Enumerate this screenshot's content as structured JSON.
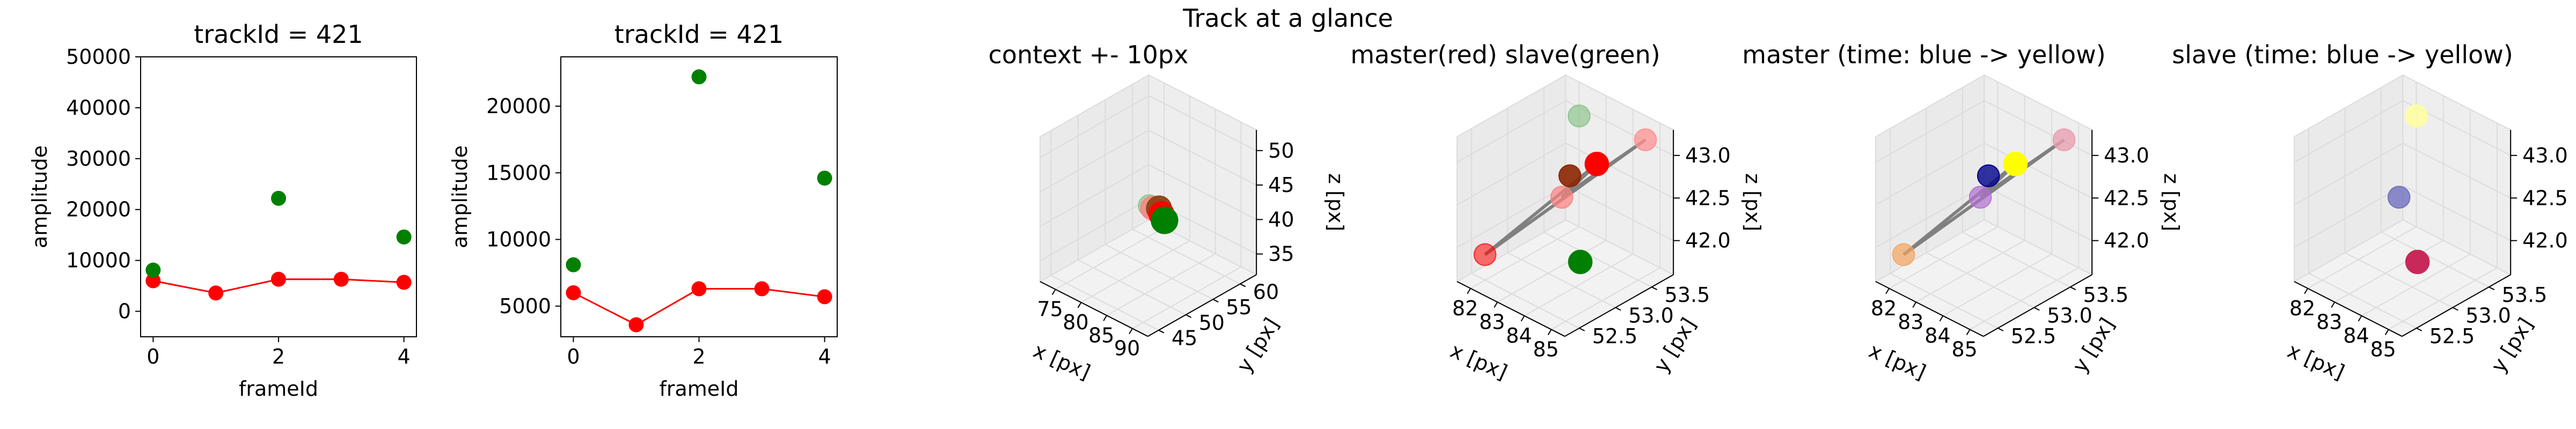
{
  "figure": {
    "suptitle": "Track at a glance"
  },
  "colors": {
    "master": "#ff0000",
    "slave": "#008000",
    "line": "#808080",
    "pane": "#f2f2f2",
    "grid": "#dcdcdc"
  },
  "chart_data": [
    {
      "type": "scatter",
      "title": "trackId = 421",
      "xlabel": "frameId",
      "ylabel": "amplitude",
      "xlim": [
        -0.2,
        4.2
      ],
      "ylim": [
        -5000,
        50000
      ],
      "xticks": [
        0,
        2,
        4
      ],
      "yticks": [
        0,
        10000,
        20000,
        30000,
        40000,
        50000
      ],
      "series": [
        {
          "color": "#ff0000",
          "line": true,
          "x": [
            0,
            1,
            2,
            3,
            4
          ],
          "y": [
            6000,
            3600,
            6300,
            6300,
            5700
          ]
        },
        {
          "color": "#008000",
          "line": false,
          "x": [
            0,
            2,
            4
          ],
          "y": [
            8100,
            22200,
            14600
          ]
        }
      ]
    },
    {
      "type": "scatter",
      "title": "trackId = 421",
      "xlabel": "frameId",
      "ylabel": "amplitude",
      "xlim": [
        -0.2,
        4.2
      ],
      "ylim": [
        2700,
        23700
      ],
      "xticks": [
        0,
        2,
        4
      ],
      "yticks": [
        5000,
        10000,
        15000,
        20000
      ],
      "series": [
        {
          "color": "#ff0000",
          "line": true,
          "x": [
            0,
            1,
            2,
            3,
            4
          ],
          "y": [
            6000,
            3600,
            6300,
            6300,
            5700
          ]
        },
        {
          "color": "#008000",
          "line": false,
          "x": [
            0,
            2,
            4
          ],
          "y": [
            8100,
            22200,
            14600
          ]
        }
      ]
    },
    {
      "type": "scatter3d",
      "title": "context +- 10px",
      "xlabel": "x [px]",
      "ylabel": "y [px]",
      "zlabel": "z [px]",
      "xlim": [
        72,
        93
      ],
      "ylim": [
        43,
        63
      ],
      "zlim": [
        32,
        53
      ],
      "xticks": [
        75,
        80,
        85,
        90
      ],
      "yticks": [
        45,
        50,
        55,
        60
      ],
      "zticks": [
        35,
        40,
        45,
        50
      ],
      "points": [
        {
          "x": 82.5,
          "y": 53.2,
          "z": 42.4,
          "color": "#7fbf7f",
          "opacity": 0.6,
          "size": 14
        },
        {
          "x": 83.0,
          "y": 53.3,
          "z": 42.2,
          "color": "#ff8080",
          "opacity": 0.8,
          "size": 15
        },
        {
          "x": 84.6,
          "y": 53.0,
          "z": 42.9,
          "color": "#8b4513",
          "opacity": 0.95,
          "size": 16
        },
        {
          "x": 85.5,
          "y": 52.6,
          "z": 42.6,
          "color": "#ff0000",
          "opacity": 0.95,
          "size": 16
        },
        {
          "x": 86.2,
          "y": 52.5,
          "z": 42.0,
          "color": "#008000",
          "opacity": 1,
          "size": 17
        }
      ],
      "lines": []
    },
    {
      "type": "scatter3d",
      "title": "master(red) slave(green)",
      "xlabel": "x [px]",
      "ylabel": "y [px]",
      "zlabel": "z [px]",
      "xlim": [
        81.5,
        85.5
      ],
      "ylim": [
        52.3,
        53.8
      ],
      "zlim": [
        41.6,
        43.3
      ],
      "xticks": [
        82,
        83,
        84,
        85
      ],
      "yticks": [
        52.5,
        53.0,
        53.5
      ],
      "zticks": [
        42.0,
        42.5,
        43.0
      ],
      "points": [
        {
          "x": 82.0,
          "y": 52.5,
          "z": 41.9,
          "color": "#ff0000",
          "opacity": 0.55,
          "size": 14
        },
        {
          "x": 82.0,
          "y": 53.8,
          "z": 42.9,
          "color": "#7fbf7f",
          "opacity": 0.6,
          "size": 14
        },
        {
          "x": 82.7,
          "y": 53.3,
          "z": 42.3,
          "color": "#ff8080",
          "opacity": 0.7,
          "size": 14
        },
        {
          "x": 83.0,
          "y": 53.3,
          "z": 42.6,
          "color": "#8b2500",
          "opacity": 0.9,
          "size": 14
        },
        {
          "x": 84.0,
          "y": 53.3,
          "z": 42.9,
          "color": "#ff0000",
          "opacity": 1,
          "size": 15
        },
        {
          "x": 85.0,
          "y": 53.6,
          "z": 43.2,
          "color": "#ff9090",
          "opacity": 0.75,
          "size": 14
        },
        {
          "x": 85.0,
          "y": 52.7,
          "z": 42.2,
          "color": "#008000",
          "opacity": 1,
          "size": 15
        }
      ],
      "lines": [
        {
          "x": [
            82.0,
            84.0
          ],
          "y": [
            52.5,
            53.3
          ],
          "z": [
            41.9,
            42.9
          ]
        },
        {
          "x": [
            82.0,
            85.0
          ],
          "y": [
            52.5,
            53.6
          ],
          "z": [
            41.9,
            43.2
          ]
        },
        {
          "x": [
            82.7,
            84.0
          ],
          "y": [
            53.3,
            53.3
          ],
          "z": [
            42.3,
            42.9
          ]
        },
        {
          "x": [
            82.7,
            85.0
          ],
          "y": [
            53.3,
            53.6
          ],
          "z": [
            42.3,
            43.2
          ]
        }
      ]
    },
    {
      "type": "scatter3d",
      "title": "master (time: blue -> yellow)",
      "xlabel": "x [px]",
      "ylabel": "y [px]",
      "zlabel": "z [px]",
      "xlim": [
        81.5,
        85.5
      ],
      "ylim": [
        52.3,
        53.8
      ],
      "zlim": [
        41.6,
        43.3
      ],
      "xticks": [
        82,
        83,
        84,
        85
      ],
      "yticks": [
        52.5,
        53.0,
        53.5
      ],
      "zticks": [
        42.0,
        42.5,
        43.0
      ],
      "points": [
        {
          "x": 82.0,
          "y": 52.5,
          "z": 41.9,
          "color": "#f4a460",
          "opacity": 0.7,
          "size": 14
        },
        {
          "x": 82.7,
          "y": 53.3,
          "z": 42.3,
          "color": "#b070d0",
          "opacity": 0.7,
          "size": 14
        },
        {
          "x": 83.0,
          "y": 53.3,
          "z": 42.6,
          "color": "#00008b",
          "opacity": 0.8,
          "size": 14
        },
        {
          "x": 84.0,
          "y": 53.3,
          "z": 42.9,
          "color": "#ffff00",
          "opacity": 1,
          "size": 15
        },
        {
          "x": 85.0,
          "y": 53.6,
          "z": 43.2,
          "color": "#e8a0b0",
          "opacity": 0.8,
          "size": 14
        }
      ],
      "lines": [
        {
          "x": [
            82.0,
            84.0
          ],
          "y": [
            52.5,
            53.3
          ],
          "z": [
            41.9,
            42.9
          ]
        },
        {
          "x": [
            82.0,
            85.0
          ],
          "y": [
            52.5,
            53.6
          ],
          "z": [
            41.9,
            43.2
          ]
        },
        {
          "x": [
            82.7,
            84.0
          ],
          "y": [
            53.3,
            53.3
          ],
          "z": [
            42.3,
            42.9
          ]
        },
        {
          "x": [
            82.7,
            85.0
          ],
          "y": [
            53.3,
            53.6
          ],
          "z": [
            42.3,
            43.2
          ]
        }
      ]
    },
    {
      "type": "scatter3d",
      "title": "slave (time: blue -> yellow)",
      "xlabel": "x [px]",
      "ylabel": "y [px]",
      "zlabel": "z [px]",
      "xlim": [
        81.5,
        85.5
      ],
      "ylim": [
        52.3,
        53.8
      ],
      "zlim": [
        41.6,
        43.3
      ],
      "xticks": [
        82,
        83,
        84,
        85
      ],
      "yticks": [
        52.5,
        53.0,
        53.5
      ],
      "zticks": [
        42.0,
        42.5,
        43.0
      ],
      "points": [
        {
          "x": 82.0,
          "y": 53.8,
          "z": 42.9,
          "color": "#ffff99",
          "opacity": 0.8,
          "size": 14
        },
        {
          "x": 82.7,
          "y": 53.3,
          "z": 42.3,
          "color": "#7070c0",
          "opacity": 0.8,
          "size": 14
        },
        {
          "x": 85.0,
          "y": 52.7,
          "z": 42.2,
          "color": "#c8285a",
          "opacity": 1,
          "size": 15
        }
      ],
      "lines": []
    }
  ]
}
